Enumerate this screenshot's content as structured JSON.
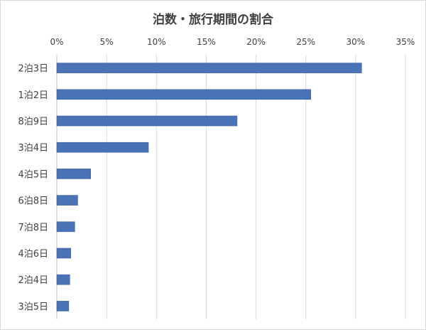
{
  "chart_data": {
    "type": "bar",
    "orientation": "horizontal",
    "title": "泊数・旅行期間の割合",
    "xlabel": "",
    "ylabel": "",
    "xlim": [
      0,
      35
    ],
    "x_ticks": [
      "0%",
      "5%",
      "10%",
      "15%",
      "20%",
      "25%",
      "30%",
      "35%"
    ],
    "x_tick_values": [
      0,
      5,
      10,
      15,
      20,
      25,
      30,
      35
    ],
    "x_axis_position": "top",
    "grid": true,
    "legend": "none",
    "bar_color": "#4a73b6",
    "categories": [
      "2泊3日",
      "1泊2日",
      "8泊9日",
      "3泊4日",
      "4泊5日",
      "6泊8日",
      "7泊8日",
      "4泊6日",
      "2泊4日",
      "3泊5日"
    ],
    "values": [
      30.6,
      25.5,
      18.1,
      9.2,
      3.4,
      2.1,
      1.8,
      1.4,
      1.3,
      1.2
    ]
  }
}
